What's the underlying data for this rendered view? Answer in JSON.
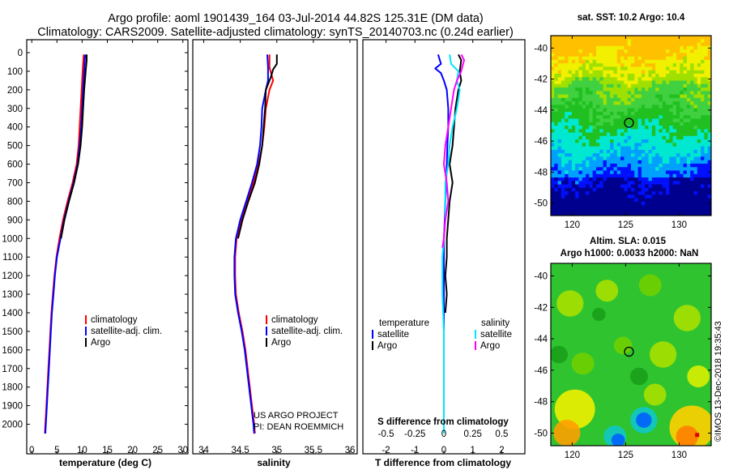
{
  "title_line1": "Argo profile: aoml 1901439_164 03-Jul-2014 44.82S 125.31E (DM data)",
  "title_line2": "Climatology: CARS2009. Satellite-adjusted climatology: synTS_20140703.nc (0.24d earlier)",
  "credit_line1": "US ARGO PROJECT",
  "credit_line2": "PI: DEAN ROEMMICH",
  "imos_stamp": "©IMOS 13-Dec-2018 19:35:43",
  "colors": {
    "climatology": "#ff0000",
    "satellite": "#0000ff",
    "argo": "#000000",
    "sat_salinity": "#00e5ff",
    "argo_salinity": "#ff00ff"
  },
  "chart_data": [
    {
      "type": "line",
      "id": "temperature",
      "xlabel": "temperature (deg C)",
      "xlim": [
        -1,
        31
      ],
      "xticks": [
        0,
        5,
        10,
        15,
        20,
        25,
        30
      ],
      "ylim": [
        0,
        2080
      ],
      "yticks": [
        0,
        100,
        200,
        300,
        400,
        500,
        600,
        700,
        800,
        900,
        1000,
        1100,
        1200,
        1300,
        1400,
        1500,
        1600,
        1700,
        1800,
        1900,
        2000
      ],
      "legend": [
        "climatology",
        "satellite-adj. clim.",
        "Argo"
      ],
      "series": [
        {
          "name": "climatology",
          "color": "#ff0000",
          "points": [
            [
              10.3,
              10
            ],
            [
              10.1,
              100
            ],
            [
              9.9,
              200
            ],
            [
              9.7,
              300
            ],
            [
              9.5,
              400
            ],
            [
              9.3,
              500
            ],
            [
              8.9,
              600
            ],
            [
              8.1,
              700
            ],
            [
              7.1,
              800
            ],
            [
              6.2,
              900
            ],
            [
              5.5,
              1000
            ],
            [
              4.9,
              1100
            ],
            [
              4.5,
              1200
            ],
            [
              4.2,
              1300
            ],
            [
              3.9,
              1400
            ],
            [
              3.7,
              1500
            ],
            [
              3.5,
              1600
            ],
            [
              3.3,
              1700
            ],
            [
              3.1,
              1800
            ],
            [
              2.9,
              1900
            ],
            [
              2.7,
              2000
            ],
            [
              2.6,
              2050
            ]
          ]
        },
        {
          "name": "satellite-adj. clim.",
          "color": "#0000ff",
          "points": [
            [
              10.6,
              10
            ],
            [
              10.4,
              100
            ],
            [
              10.2,
              200
            ],
            [
              10.0,
              300
            ],
            [
              9.8,
              400
            ],
            [
              9.5,
              500
            ],
            [
              9.1,
              600
            ],
            [
              8.3,
              700
            ],
            [
              7.3,
              800
            ],
            [
              6.4,
              900
            ],
            [
              5.7,
              1000
            ],
            [
              5.0,
              1100
            ],
            [
              4.6,
              1200
            ],
            [
              4.3,
              1300
            ],
            [
              4.0,
              1400
            ],
            [
              3.8,
              1500
            ],
            [
              3.6,
              1600
            ],
            [
              3.4,
              1700
            ],
            [
              3.2,
              1800
            ],
            [
              3.0,
              1900
            ],
            [
              2.8,
              2000
            ],
            [
              2.7,
              2050
            ]
          ]
        },
        {
          "name": "Argo",
          "color": "#000000",
          "points": [
            [
              10.9,
              10
            ],
            [
              10.9,
              40
            ],
            [
              10.7,
              100
            ],
            [
              10.4,
              200
            ],
            [
              10.2,
              300
            ],
            [
              10.0,
              400
            ],
            [
              9.7,
              500
            ],
            [
              9.2,
              600
            ],
            [
              8.4,
              700
            ],
            [
              7.4,
              800
            ],
            [
              6.5,
              900
            ],
            [
              5.8,
              1000
            ]
          ]
        }
      ]
    },
    {
      "type": "line",
      "id": "salinity",
      "xlabel": "salinity",
      "xlim": [
        33.85,
        36.1
      ],
      "xticks": [
        34,
        34.5,
        35,
        35.5,
        36
      ],
      "ylim": [
        0,
        2080
      ],
      "legend": [
        "climatology",
        "satellite-adj. clim.",
        "Argo"
      ],
      "series": [
        {
          "name": "climatology",
          "color": "#ff0000",
          "points": [
            [
              34.9,
              10
            ],
            [
              34.9,
              80
            ],
            [
              34.95,
              150
            ],
            [
              34.9,
              200
            ],
            [
              34.85,
              300
            ],
            [
              34.83,
              400
            ],
            [
              34.8,
              500
            ],
            [
              34.75,
              600
            ],
            [
              34.68,
              700
            ],
            [
              34.6,
              800
            ],
            [
              34.52,
              900
            ],
            [
              34.45,
              1000
            ],
            [
              34.43,
              1100
            ],
            [
              34.43,
              1200
            ],
            [
              34.44,
              1300
            ],
            [
              34.48,
              1400
            ],
            [
              34.53,
              1500
            ],
            [
              34.57,
              1600
            ],
            [
              34.6,
              1700
            ],
            [
              34.63,
              1800
            ],
            [
              34.66,
              1900
            ],
            [
              34.69,
              2000
            ],
            [
              34.7,
              2050
            ]
          ]
        },
        {
          "name": "satellite-adj. clim.",
          "color": "#0000ff",
          "points": [
            [
              34.87,
              10
            ],
            [
              34.88,
              80
            ],
            [
              34.88,
              150
            ],
            [
              34.85,
              200
            ],
            [
              34.8,
              300
            ],
            [
              34.79,
              400
            ],
            [
              34.77,
              500
            ],
            [
              34.73,
              600
            ],
            [
              34.66,
              700
            ],
            [
              34.58,
              800
            ],
            [
              34.5,
              900
            ],
            [
              34.44,
              1000
            ],
            [
              34.42,
              1100
            ],
            [
              34.42,
              1200
            ],
            [
              34.43,
              1300
            ],
            [
              34.47,
              1400
            ],
            [
              34.52,
              1500
            ],
            [
              34.56,
              1600
            ],
            [
              34.59,
              1700
            ],
            [
              34.62,
              1800
            ],
            [
              34.65,
              1900
            ],
            [
              34.68,
              2000
            ],
            [
              34.69,
              2050
            ]
          ]
        },
        {
          "name": "Argo",
          "color": "#000000",
          "points": [
            [
              35.0,
              10
            ],
            [
              35.0,
              60
            ],
            [
              34.95,
              90
            ],
            [
              34.92,
              130
            ],
            [
              34.85,
              200
            ],
            [
              34.84,
              300
            ],
            [
              34.82,
              400
            ],
            [
              34.8,
              500
            ],
            [
              34.76,
              600
            ],
            [
              34.7,
              700
            ],
            [
              34.61,
              800
            ],
            [
              34.53,
              900
            ],
            [
              34.47,
              1000
            ]
          ]
        }
      ]
    },
    {
      "type": "line",
      "id": "difference",
      "xlabel": "T difference from climatology",
      "xlabel_top": "S difference from climatology",
      "xlim": [
        -2.8,
        2.8
      ],
      "xticks": [
        -2,
        -1,
        0,
        1,
        2
      ],
      "xticklabels_top": [
        "-0.5",
        "-0.25",
        "0",
        "0.25",
        "0.5"
      ],
      "ylim": [
        0,
        2080
      ],
      "legend_titles": [
        "temperature",
        "salinity"
      ],
      "legend": [
        "satellite",
        "Argo",
        "satellite",
        "Argo"
      ],
      "series": [
        {
          "name": "satellite",
          "group": "temperature",
          "color": "#0000ff",
          "points": [
            [
              -0.2,
              10
            ],
            [
              -0.1,
              60
            ],
            [
              -0.3,
              85
            ],
            [
              -0.1,
              110
            ],
            [
              0.0,
              150
            ],
            [
              0.1,
              200
            ],
            [
              0.15,
              300
            ],
            [
              0.15,
              400
            ],
            [
              0.12,
              500
            ],
            [
              0.1,
              600
            ],
            [
              0.08,
              700
            ],
            [
              0.05,
              800
            ],
            [
              0.03,
              900
            ],
            [
              0.0,
              1000
            ],
            [
              0.0,
              1100
            ],
            [
              0.0,
              1500
            ],
            [
              0.0,
              2050
            ]
          ]
        },
        {
          "name": "Argo",
          "group": "temperature",
          "color": "#000000",
          "points": [
            [
              0.5,
              10
            ],
            [
              0.6,
              40
            ],
            [
              0.55,
              100
            ],
            [
              0.6,
              150
            ],
            [
              0.5,
              200
            ],
            [
              0.4,
              300
            ],
            [
              0.35,
              400
            ],
            [
              0.3,
              500
            ],
            [
              0.2,
              600
            ],
            [
              0.3,
              700
            ],
            [
              0.2,
              800
            ],
            [
              0.15,
              900
            ],
            [
              0.1,
              1000
            ],
            [
              0.1,
              1100
            ],
            [
              0.05,
              1200
            ],
            [
              0.1,
              1300
            ],
            [
              0.05,
              1400
            ]
          ]
        },
        {
          "name": "satellite",
          "group": "salinity",
          "color": "#00e5ff",
          "points": [
            [
              0.2,
              10
            ],
            [
              0.25,
              60
            ],
            [
              0.5,
              100
            ],
            [
              0.45,
              150
            ],
            [
              0.55,
              200
            ],
            [
              0.45,
              300
            ],
            [
              0.3,
              400
            ],
            [
              0.2,
              500
            ],
            [
              0.15,
              600
            ],
            [
              0.05,
              700
            ],
            [
              0.05,
              900
            ],
            [
              0.0,
              1000
            ],
            [
              -0.05,
              1100
            ],
            [
              -0.05,
              1300
            ],
            [
              0.0,
              1500
            ],
            [
              0.0,
              2050
            ]
          ]
        },
        {
          "name": "Argo",
          "group": "salinity",
          "color": "#ff00ff",
          "points": [
            [
              0.6,
              10
            ],
            [
              0.7,
              40
            ],
            [
              0.6,
              100
            ],
            [
              0.45,
              150
            ],
            [
              0.35,
              200
            ],
            [
              0.25,
              300
            ],
            [
              0.15,
              400
            ],
            [
              0.05,
              500
            ],
            [
              0.0,
              600
            ],
            [
              0.1,
              700
            ],
            [
              0.15,
              800
            ],
            [
              0.05,
              900
            ],
            [
              0.0,
              1000
            ],
            [
              -0.05,
              1050
            ]
          ]
        }
      ]
    },
    {
      "type": "heatmap",
      "id": "sst_map",
      "title": "sat. SST: 10.2 Argo: 10.4",
      "xlim": [
        118,
        133
      ],
      "ylim": [
        -50.8,
        -39.2
      ],
      "xticks": [
        120,
        125,
        130
      ],
      "yticks": [
        -40,
        -42,
        -44,
        -46,
        -48,
        -50
      ],
      "argo_location": [
        125.31,
        -44.82
      ]
    },
    {
      "type": "heatmap",
      "id": "sla_map",
      "title_line1": "Altim. SLA: 0.015",
      "title_line2": "Argo h1000: 0.0033 h2000: NaN",
      "xlim": [
        118,
        133
      ],
      "ylim": [
        -50.8,
        -39.2
      ],
      "xticks": [
        120,
        125,
        130
      ],
      "yticks": [
        -40,
        -42,
        -44,
        -46,
        -48,
        -50
      ],
      "argo_location": [
        125.31,
        -44.82
      ]
    }
  ]
}
